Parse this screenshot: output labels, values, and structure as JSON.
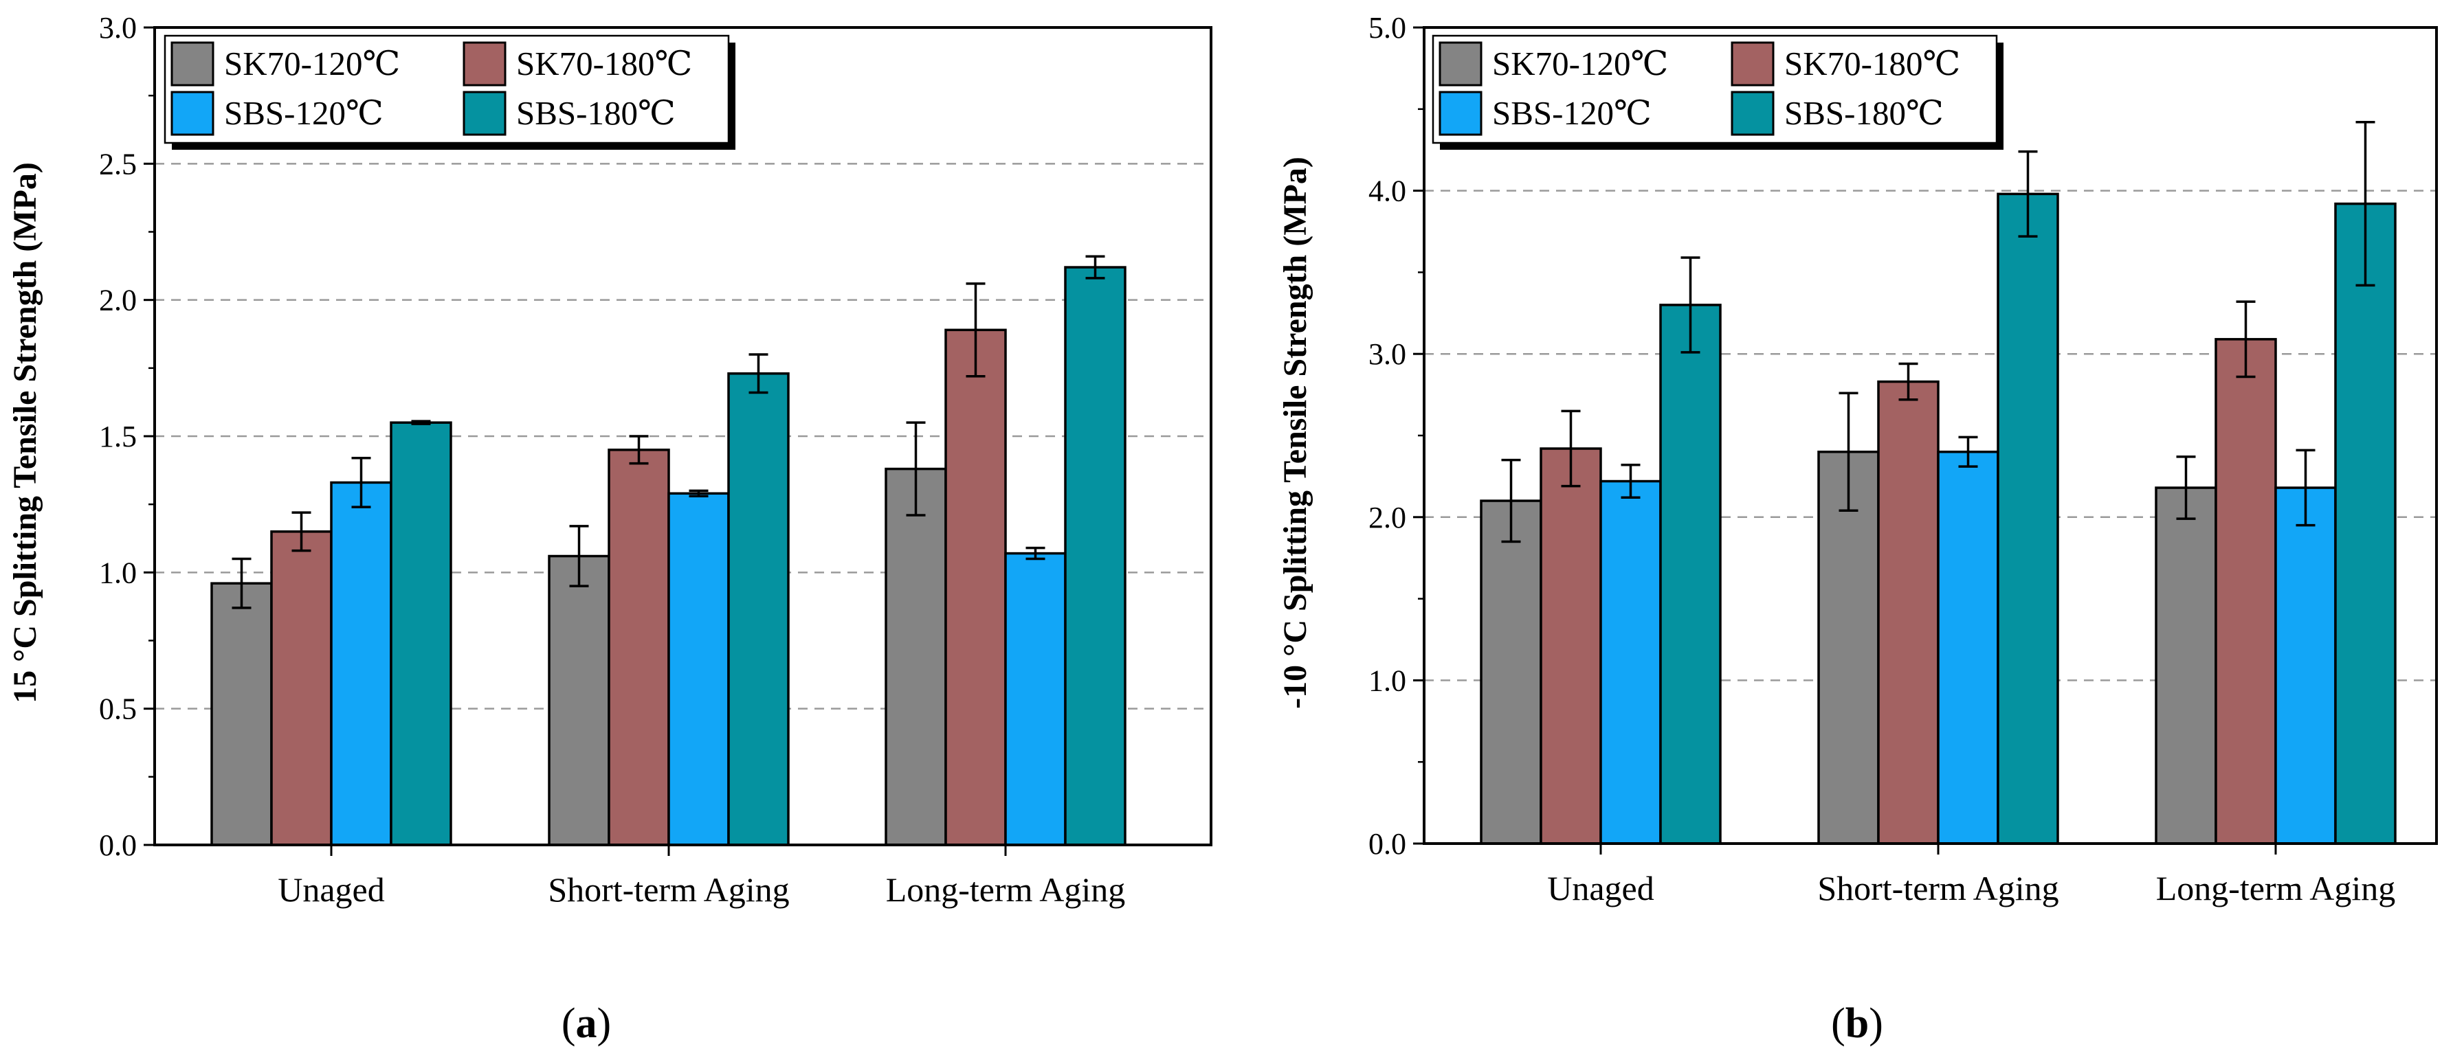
{
  "colors": {
    "SK70-120℃": "#848484",
    "SK70-180℃": "#a36262",
    "SBS-120℃": "#12a6f7",
    "SBS-180℃": "#0592a0"
  },
  "chart_data": [
    {
      "type": "bar",
      "panel_label": "a",
      "categories": [
        "Unaged",
        "Short-term Aging",
        "Long-term Aging"
      ],
      "ylabel": "15 °C Splitting Tensile Strength (MPa)",
      "xlabel": "",
      "ylim": [
        0,
        3.0
      ],
      "yticks": [
        "0.0",
        "0.5",
        "1.0",
        "1.5",
        "2.0",
        "2.5",
        "3.0"
      ],
      "grid": "horizontal dashed",
      "legend_position": "top-left",
      "series": [
        {
          "name": "SK70-120℃",
          "values": [
            0.96,
            1.06,
            1.38
          ],
          "errors": [
            0.09,
            0.11,
            0.17
          ]
        },
        {
          "name": "SK70-180℃",
          "values": [
            1.15,
            1.45,
            1.89
          ],
          "errors": [
            0.07,
            0.05,
            0.17
          ]
        },
        {
          "name": "SBS-120℃",
          "values": [
            1.33,
            1.29,
            1.07
          ],
          "errors": [
            0.09,
            0.01,
            0.02
          ]
        },
        {
          "name": "SBS-180℃",
          "values": [
            1.55,
            1.73,
            2.12
          ],
          "errors": [
            0.005,
            0.07,
            0.04
          ]
        }
      ]
    },
    {
      "type": "bar",
      "panel_label": "b",
      "categories": [
        "Unaged",
        "Short-term Aging",
        "Long-term Aging"
      ],
      "ylabel": "-10 °C Splitting Tensile Strength (MPa)",
      "xlabel": "",
      "ylim": [
        0,
        5.0
      ],
      "yticks": [
        "0.0",
        "1.0",
        "2.0",
        "3.0",
        "4.0",
        "5.0"
      ],
      "grid": "horizontal dashed",
      "legend_position": "top-left",
      "series": [
        {
          "name": "SK70-120℃",
          "values": [
            2.1,
            2.4,
            2.18
          ],
          "errors": [
            0.25,
            0.36,
            0.19
          ]
        },
        {
          "name": "SK70-180℃",
          "values": [
            2.42,
            2.83,
            3.09
          ],
          "errors": [
            0.23,
            0.11,
            0.23
          ]
        },
        {
          "name": "SBS-120℃",
          "values": [
            2.22,
            2.4,
            2.18
          ],
          "errors": [
            0.1,
            0.09,
            0.23
          ]
        },
        {
          "name": "SBS-180℃",
          "values": [
            3.3,
            3.98,
            3.92
          ],
          "errors": [
            0.29,
            0.26,
            0.5
          ]
        }
      ]
    }
  ]
}
